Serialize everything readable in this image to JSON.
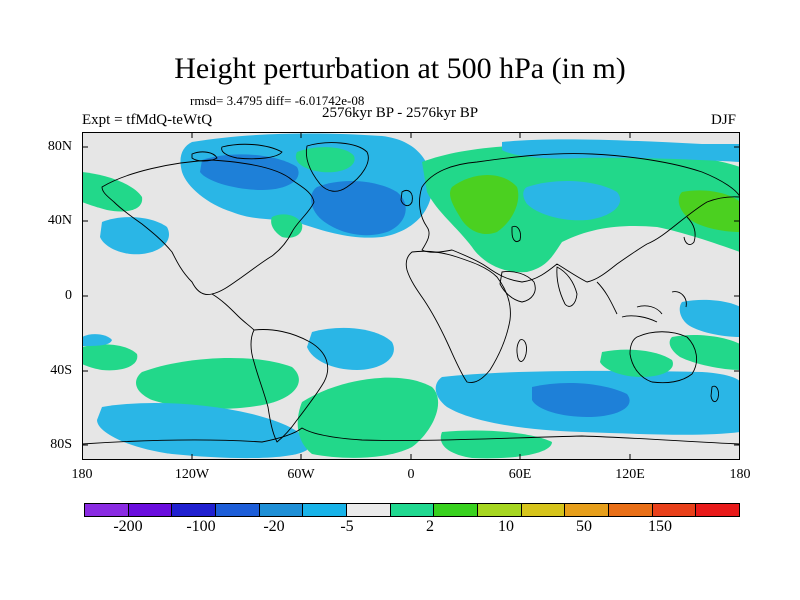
{
  "header": {
    "title": "Height perturbation at 500 hPa (in m)",
    "stats": "rmsd= 3.4795 diff= -6.01742e-08",
    "expt": "Expt = tfMdQ-teWtQ",
    "period": "2576kyr BP - 2576kyr BP",
    "season": "DJF"
  },
  "axes": {
    "lat_ticks": [
      "80N",
      "40N",
      "0",
      "40S",
      "80S"
    ],
    "lon_ticks": [
      "180",
      "120W",
      "60W",
      "0",
      "60E",
      "120E",
      "180"
    ]
  },
  "colorbar": {
    "colors": [
      "#8a2be2",
      "#6a0dde",
      "#2020d0",
      "#1d5ed8",
      "#1e8fd6",
      "#18b3e8",
      "#ebebeb",
      "#20d890",
      "#38d11e",
      "#a6d620",
      "#d6c41b",
      "#e79f1b",
      "#e86f17",
      "#e8401a",
      "#e81a1a"
    ],
    "labels": [
      "-200",
      "-100",
      "-20",
      "-5",
      "2",
      "10",
      "50",
      "150"
    ]
  },
  "palette": {
    "neutral": "#e6e6e6",
    "cyan": "#2ab6e6",
    "blue": "#1e80d8",
    "green": "#22d88a",
    "lime": "#4bd020",
    "coast": "#000000"
  }
}
